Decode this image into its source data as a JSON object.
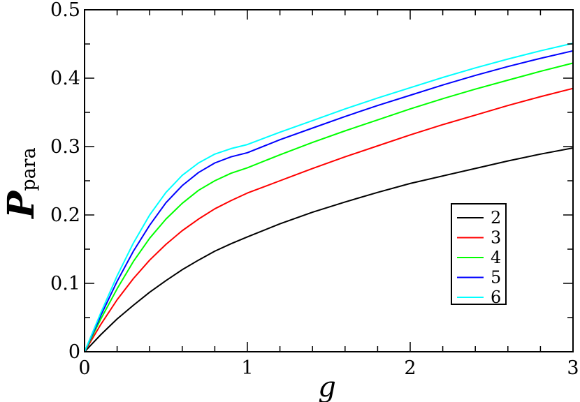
{
  "chart_data": {
    "type": "line",
    "title": "",
    "xlabel": "g",
    "ylabel": {
      "main": "P",
      "sub": "para"
    },
    "xlim": [
      0,
      3
    ],
    "ylim": [
      0,
      0.5
    ],
    "x_ticks": [
      0,
      1,
      2,
      3
    ],
    "y_ticks": [
      0,
      0.1,
      0.2,
      0.3,
      0.4,
      0.5
    ],
    "x_tick_labels": [
      "0",
      "1",
      "2",
      "3"
    ],
    "y_tick_labels": [
      "0",
      "0.1",
      "0.2",
      "0.3",
      "0.4",
      "0.5"
    ],
    "grid": false,
    "legend_position": "right-middle",
    "series": [
      {
        "name": "2",
        "color": "#000000",
        "x": [
          0,
          0.1,
          0.2,
          0.3,
          0.4,
          0.5,
          0.6,
          0.7,
          0.8,
          0.9,
          1.0,
          1.2,
          1.4,
          1.6,
          1.8,
          2.0,
          2.2,
          2.4,
          2.6,
          2.8,
          3.0
        ],
        "y": [
          0,
          0.025,
          0.048,
          0.068,
          0.087,
          0.104,
          0.12,
          0.134,
          0.147,
          0.158,
          0.168,
          0.187,
          0.204,
          0.219,
          0.233,
          0.246,
          0.257,
          0.268,
          0.279,
          0.289,
          0.298
        ]
      },
      {
        "name": "3",
        "color": "#ff0000",
        "x": [
          0,
          0.1,
          0.2,
          0.3,
          0.4,
          0.5,
          0.6,
          0.7,
          0.8,
          0.9,
          1.0,
          1.2,
          1.4,
          1.6,
          1.8,
          2.0,
          2.2,
          2.4,
          2.6,
          2.8,
          3.0
        ],
        "y": [
          0,
          0.04,
          0.076,
          0.107,
          0.134,
          0.157,
          0.177,
          0.194,
          0.209,
          0.221,
          0.232,
          0.25,
          0.268,
          0.285,
          0.301,
          0.317,
          0.332,
          0.346,
          0.36,
          0.373,
          0.385
        ]
      },
      {
        "name": "4",
        "color": "#00ff00",
        "x": [
          0,
          0.1,
          0.2,
          0.3,
          0.4,
          0.5,
          0.6,
          0.7,
          0.8,
          0.9,
          1.0,
          1.2,
          1.4,
          1.6,
          1.8,
          2.0,
          2.2,
          2.4,
          2.6,
          2.8,
          3.0
        ],
        "y": [
          0,
          0.048,
          0.092,
          0.132,
          0.166,
          0.194,
          0.217,
          0.236,
          0.25,
          0.261,
          0.269,
          0.288,
          0.306,
          0.323,
          0.339,
          0.355,
          0.37,
          0.384,
          0.397,
          0.41,
          0.422
        ]
      },
      {
        "name": "5",
        "color": "#0000ff",
        "x": [
          0,
          0.1,
          0.2,
          0.3,
          0.4,
          0.5,
          0.6,
          0.7,
          0.8,
          0.9,
          1.0,
          1.2,
          1.4,
          1.6,
          1.8,
          2.0,
          2.2,
          2.4,
          2.6,
          2.8,
          3.0
        ],
        "y": [
          0,
          0.053,
          0.103,
          0.147,
          0.185,
          0.218,
          0.243,
          0.262,
          0.276,
          0.285,
          0.291,
          0.31,
          0.327,
          0.344,
          0.36,
          0.375,
          0.39,
          0.404,
          0.417,
          0.429,
          0.44
        ]
      },
      {
        "name": "6",
        "color": "#00ffff",
        "x": [
          0,
          0.1,
          0.2,
          0.3,
          0.4,
          0.5,
          0.6,
          0.7,
          0.8,
          0.9,
          1.0,
          1.2,
          1.4,
          1.6,
          1.8,
          2.0,
          2.2,
          2.4,
          2.6,
          2.8,
          3.0
        ],
        "y": [
          0,
          0.057,
          0.111,
          0.159,
          0.2,
          0.233,
          0.258,
          0.276,
          0.289,
          0.297,
          0.303,
          0.321,
          0.338,
          0.355,
          0.371,
          0.386,
          0.401,
          0.415,
          0.428,
          0.44,
          0.451
        ]
      }
    ]
  }
}
